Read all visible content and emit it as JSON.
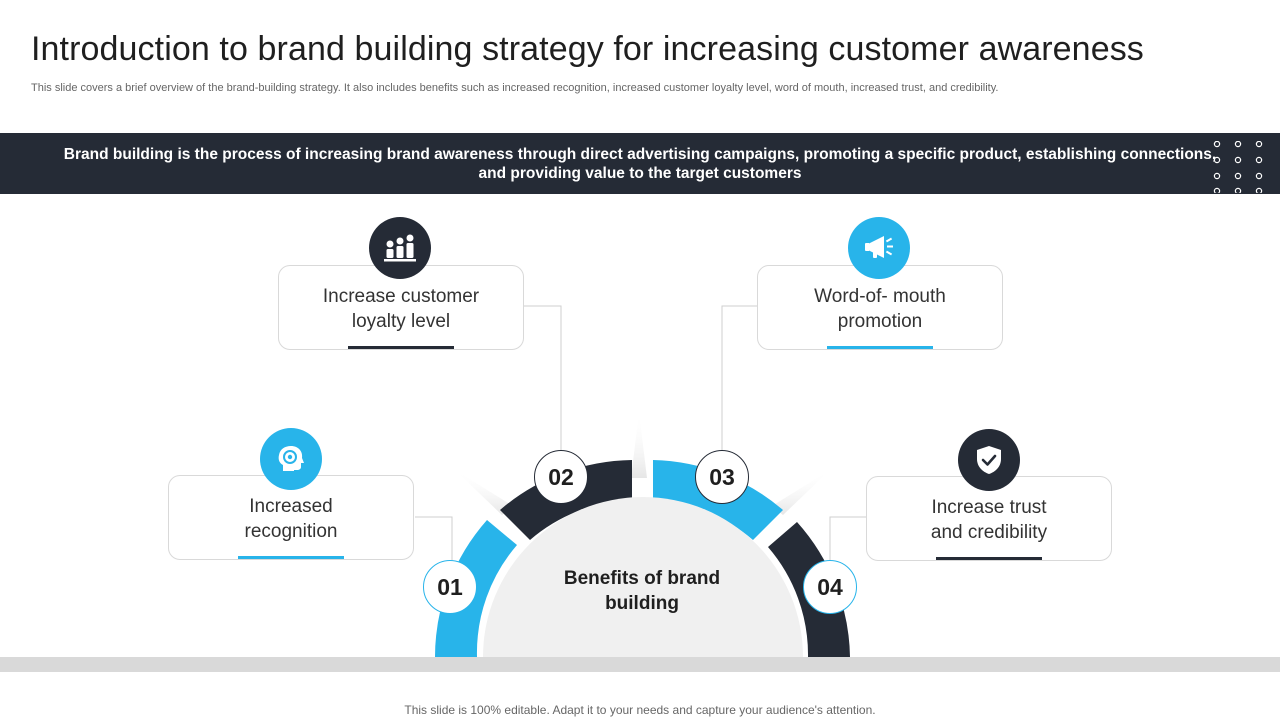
{
  "slide": {
    "title": "Introduction to brand building strategy for increasing customer awareness",
    "subtitle": "This slide covers a brief overview of the brand-building strategy. It also includes benefits such as increased recognition, increased customer loyalty level, word of mouth, increased trust, and credibility.",
    "banner": "Brand building is the process of increasing brand awareness through direct advertising campaigns, promoting a specific product, establishing connections, and providing value to the target customers",
    "center_label": "Benefits of brand building",
    "footer": "This slide is 100% editable. Adapt it to your needs and capture your audience's attention."
  },
  "benefits": [
    {
      "number": "01",
      "label": "Increased recognition",
      "icon": "brain-icon",
      "accent": "#28b4ea"
    },
    {
      "number": "02",
      "label": "Increase customer loyalty level",
      "icon": "people-icon",
      "accent": "#252b36"
    },
    {
      "number": "03",
      "label": "Word-of- mouth promotion",
      "icon": "megaphone-icon",
      "accent": "#28b4ea"
    },
    {
      "number": "04",
      "label": "Increase trust and credibility",
      "icon": "shield-check-icon",
      "accent": "#252b36"
    }
  ],
  "colors": {
    "dark": "#252b36",
    "blue": "#28b4ea",
    "light_gray": "#f0f0f0"
  }
}
